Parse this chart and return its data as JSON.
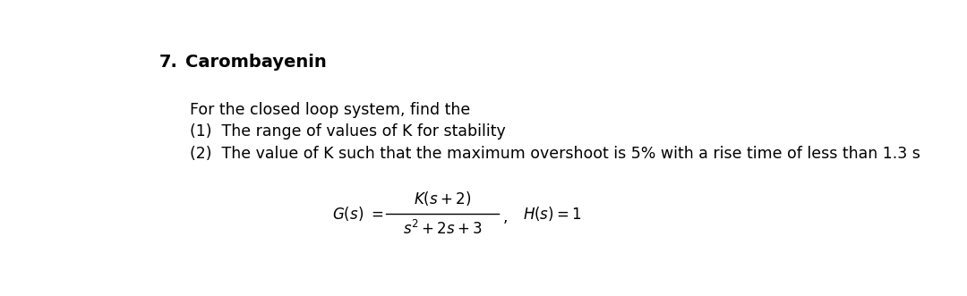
{
  "title_number": "7.",
  "title_text": "Carombayenin",
  "line1": "For the closed loop system, find the",
  "line2": "(1)  The range of values of K for stability",
  "line3": "(2)  The value of K such that the maximum overshoot is 5% with a rise time of less than 1.3 s",
  "bg_color": "#ffffff",
  "text_color": "#000000",
  "title_fontsize": 14,
  "body_fontsize": 12.5,
  "formula_fontsize": 12
}
